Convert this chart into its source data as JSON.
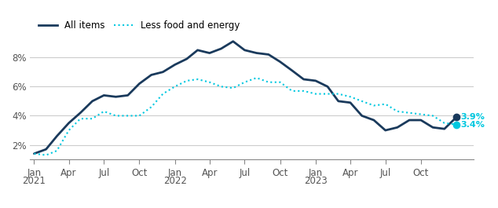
{
  "all_items": [
    1.4,
    1.7,
    2.6,
    3.5,
    4.2,
    5.0,
    5.4,
    5.3,
    5.4,
    6.2,
    6.8,
    7.0,
    7.5,
    7.9,
    8.5,
    8.3,
    8.6,
    9.1,
    8.5,
    8.3,
    8.2,
    7.7,
    7.1,
    6.5,
    6.4,
    6.0,
    5.0,
    4.9,
    4.0,
    3.7,
    3.0,
    3.2,
    3.7,
    3.7,
    3.2,
    3.1,
    3.9
  ],
  "less_food_energy": [
    1.4,
    1.3,
    1.6,
    3.0,
    3.8,
    3.8,
    4.3,
    4.0,
    4.0,
    4.0,
    4.6,
    5.5,
    6.0,
    6.4,
    6.5,
    6.3,
    6.0,
    5.9,
    6.3,
    6.6,
    6.3,
    6.3,
    5.7,
    5.7,
    5.5,
    5.5,
    5.5,
    5.3,
    5.0,
    4.7,
    4.8,
    4.3,
    4.2,
    4.1,
    4.0,
    3.5,
    3.4
  ],
  "color_all_items": "#1a3a5c",
  "color_less_food": "#00c8e0",
  "label_all_items": "All items",
  "label_less_food": "Less food and energy",
  "final_label_all": "3.9%",
  "final_label_less": "3.4%",
  "yticks": [
    2,
    4,
    6,
    8
  ],
  "ylim": [
    1.0,
    9.8
  ],
  "background_color": "#ffffff",
  "grid_color": "#cccccc",
  "tick_label_color": "#555555"
}
